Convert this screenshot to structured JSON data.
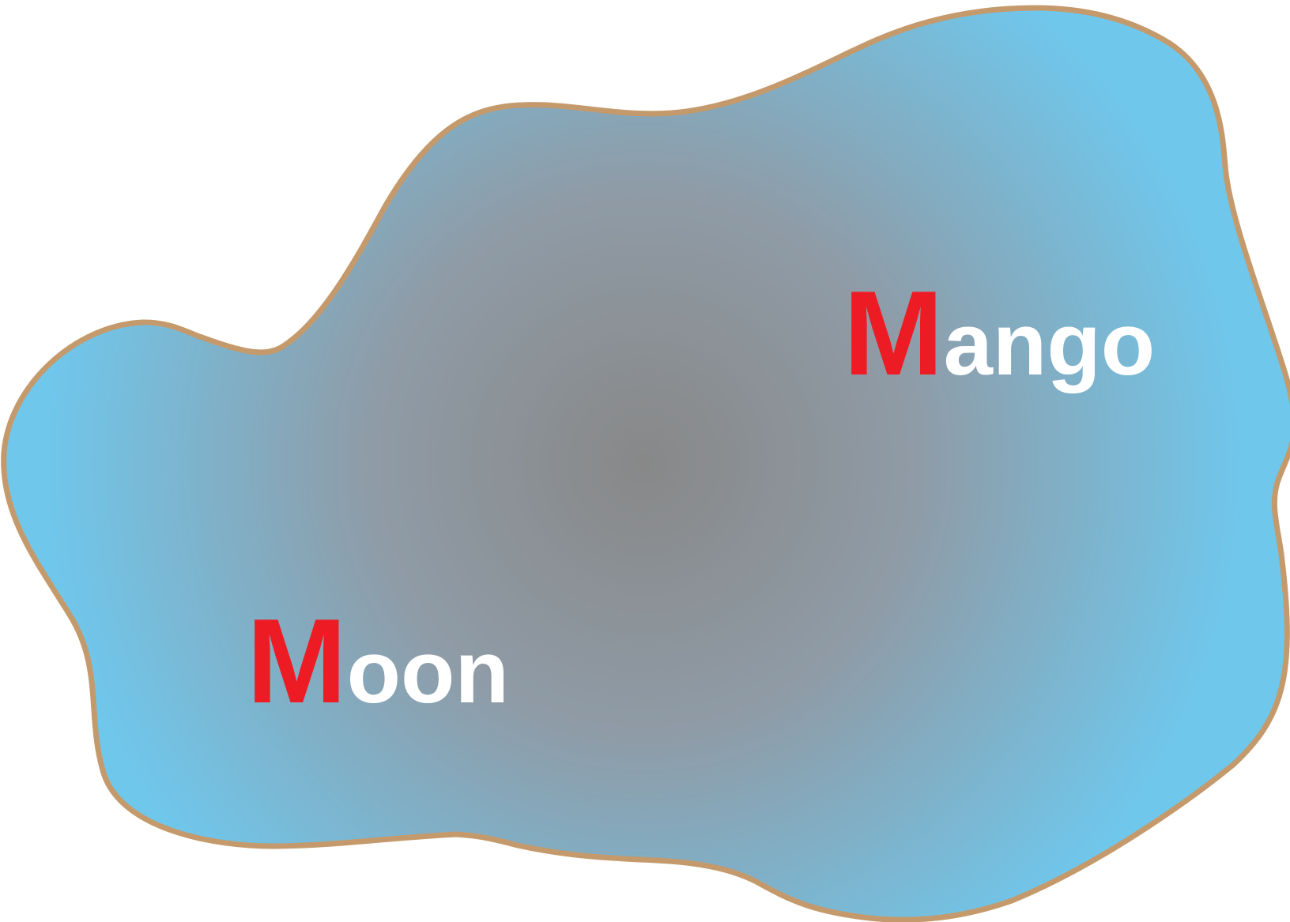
{
  "colors": {
    "blob_center": "#888888",
    "blob_edge": "#6fc7ec",
    "outline": "#c49a6c",
    "first_letter": "#ed1c24",
    "rest_letters": "#ffffff",
    "background": "#ffffff"
  },
  "labels": {
    "mango": {
      "first": "M",
      "rest": "ango"
    },
    "moon": {
      "first": "M",
      "rest": "oon"
    }
  }
}
